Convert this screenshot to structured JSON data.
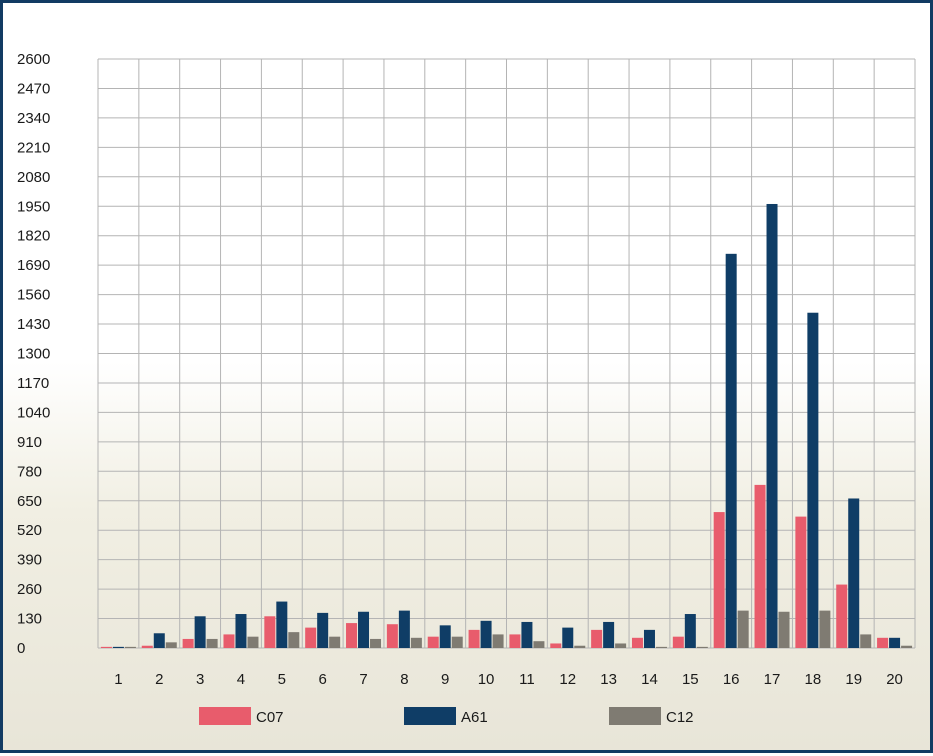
{
  "chart_data": {
    "type": "bar",
    "title": "",
    "xlabel": "",
    "ylabel": "",
    "categories": [
      "1",
      "2",
      "3",
      "4",
      "5",
      "6",
      "7",
      "8",
      "9",
      "10",
      "11",
      "12",
      "13",
      "14",
      "15",
      "16",
      "17",
      "18",
      "19",
      "20"
    ],
    "yticks": [
      "0",
      "130",
      "260",
      "390",
      "520",
      "650",
      "780",
      "910",
      "1040",
      "1170",
      "1300",
      "1430",
      "1560",
      "1690",
      "1820",
      "1950",
      "2080",
      "2210",
      "2340",
      "2470",
      "2600"
    ],
    "ylim": [
      0,
      2600
    ],
    "grid": true,
    "legend_position": "bottom",
    "series": [
      {
        "name": "C07",
        "color": "#e85c6c",
        "values": [
          5,
          10,
          40,
          60,
          140,
          90,
          110,
          105,
          50,
          80,
          60,
          20,
          80,
          45,
          50,
          600,
          720,
          580,
          280,
          45
        ]
      },
      {
        "name": "A61",
        "color": "#0f3d66",
        "values": [
          5,
          65,
          140,
          150,
          205,
          155,
          160,
          165,
          100,
          120,
          115,
          90,
          115,
          80,
          150,
          1740,
          1960,
          1480,
          660,
          45
        ]
      },
      {
        "name": "C12",
        "color": "#7f7b72",
        "values": [
          5,
          25,
          40,
          50,
          70,
          50,
          40,
          45,
          50,
          60,
          30,
          10,
          20,
          5,
          5,
          165,
          160,
          165,
          60,
          10
        ]
      }
    ]
  }
}
